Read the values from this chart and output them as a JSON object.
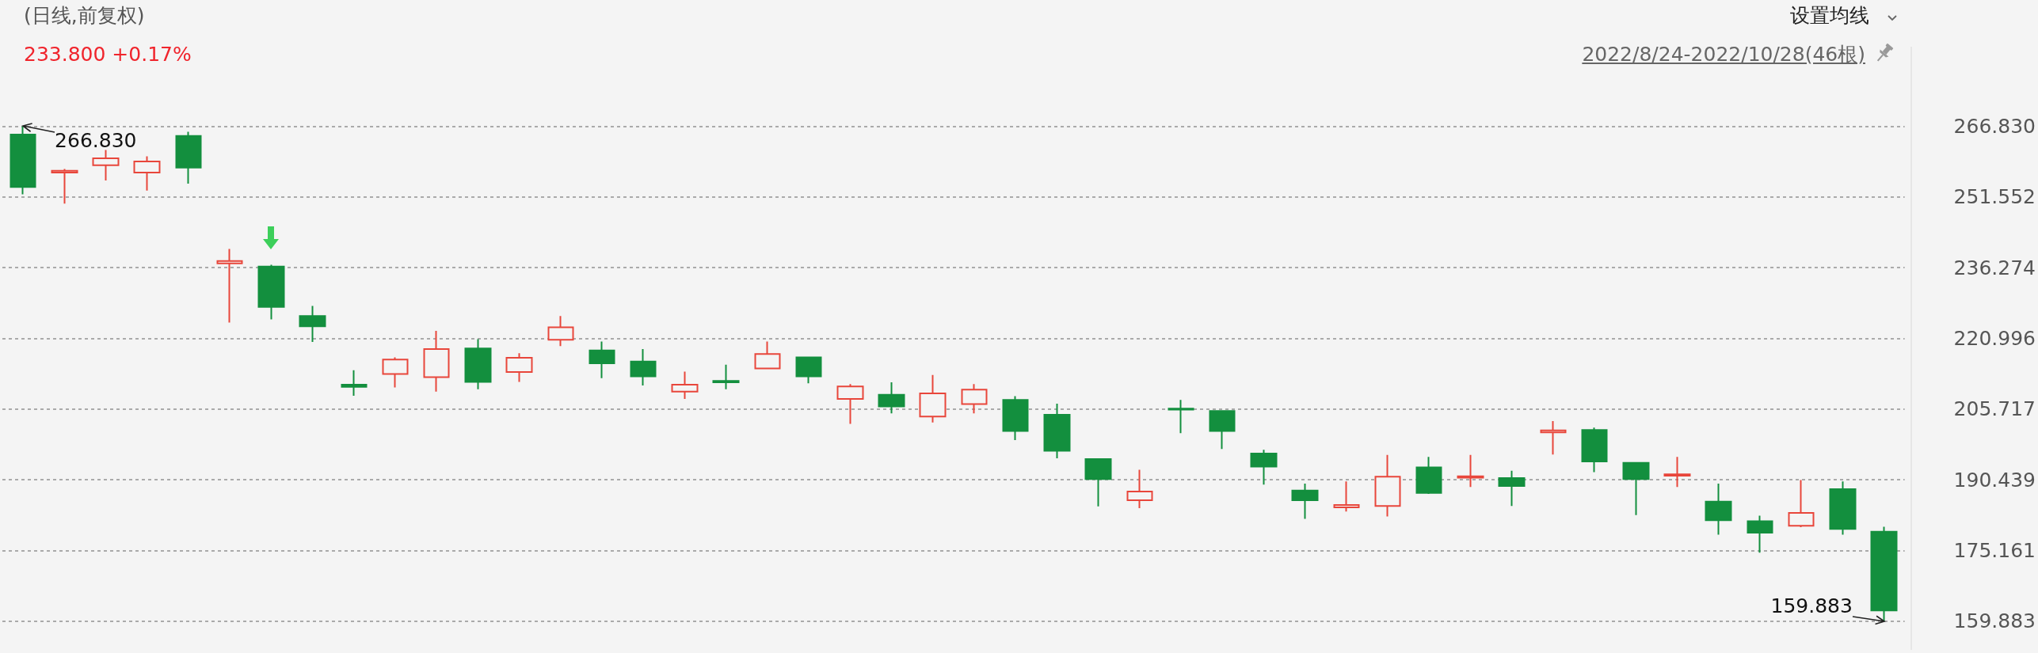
{
  "chart_data": {
    "type": "candlestick",
    "title": "(日线,前复权)",
    "subtitle": "233.800 +0.17%",
    "annotations": [
      "设置均线",
      "2022/8/24-2022/10/28(46根)",
      "266.830",
      "159.883"
    ],
    "categories": [
      null,
      null,
      null,
      null,
      null,
      null,
      null,
      null,
      null,
      null,
      null,
      null,
      null,
      null,
      null,
      null,
      null,
      null,
      null,
      null,
      null,
      null,
      null,
      null,
      null,
      null,
      null,
      null,
      null,
      null,
      null,
      null,
      null,
      null,
      null,
      null,
      null,
      null,
      null,
      null,
      null,
      null,
      null,
      null,
      null,
      null
    ],
    "ohlc": [
      [
        265.0,
        266.83,
        252.1,
        253.7
      ],
      [
        256.8,
        257.6,
        250.1,
        257.2
      ],
      [
        258.4,
        261.7,
        255.1,
        259.9
      ],
      [
        256.8,
        260.3,
        252.9,
        259.2
      ],
      [
        264.7,
        265.6,
        254.4,
        257.9
      ],
      [
        237.2,
        240.3,
        224.4,
        237.7
      ],
      [
        236.5,
        236.9,
        225.1,
        227.8
      ],
      [
        225.8,
        228.0,
        220.2,
        223.6
      ],
      [
        211.0,
        214.1,
        208.6,
        210.5
      ],
      [
        213.3,
        216.9,
        210.4,
        216.4
      ],
      [
        212.6,
        222.6,
        209.5,
        218.7
      ],
      [
        218.8,
        220.8,
        210.0,
        211.6
      ],
      [
        213.7,
        217.8,
        211.6,
        216.8
      ],
      [
        220.7,
        225.8,
        219.3,
        223.4
      ],
      [
        218.4,
        220.3,
        212.4,
        215.6
      ],
      [
        216.0,
        218.7,
        210.8,
        212.8
      ],
      [
        209.5,
        213.8,
        207.9,
        211.0
      ],
      [
        211.8,
        215.3,
        210.0,
        211.5
      ],
      [
        214.5,
        220.3,
        214.3,
        217.6
      ],
      [
        216.9,
        216.9,
        211.3,
        212.8
      ],
      [
        207.9,
        211.1,
        202.5,
        210.6
      ],
      [
        208.8,
        211.5,
        204.8,
        206.3
      ],
      [
        204.1,
        213.1,
        202.8,
        209.1
      ],
      [
        206.8,
        211.1,
        204.8,
        209.9
      ],
      [
        207.7,
        208.5,
        199.0,
        201.0
      ],
      [
        204.5,
        206.9,
        195.1,
        196.7
      ],
      [
        194.9,
        194.9,
        184.7,
        190.6
      ],
      [
        186.0,
        192.6,
        184.3,
        187.9
      ],
      [
        205.8,
        207.7,
        200.5,
        205.6
      ],
      [
        205.3,
        205.3,
        197.1,
        201.0
      ],
      [
        196.1,
        196.9,
        189.4,
        193.3
      ],
      [
        188.1,
        189.6,
        182.0,
        186.0
      ],
      [
        184.5,
        190.1,
        183.6,
        185.0
      ],
      [
        184.8,
        195.8,
        182.5,
        191.1
      ],
      [
        193.1,
        195.4,
        187.4,
        187.6
      ],
      [
        190.9,
        195.8,
        188.9,
        191.2
      ],
      [
        190.8,
        192.4,
        184.8,
        189.1
      ],
      [
        200.7,
        203.1,
        195.9,
        201.1
      ],
      [
        201.2,
        201.7,
        192.1,
        194.4
      ],
      [
        194.1,
        194.1,
        182.8,
        190.6
      ],
      [
        191.3,
        195.4,
        188.9,
        191.6
      ],
      [
        185.7,
        189.6,
        178.6,
        181.7
      ],
      [
        181.5,
        182.7,
        174.7,
        179.0
      ],
      [
        180.5,
        190.4,
        180.2,
        183.3
      ],
      [
        188.4,
        190.1,
        178.6,
        179.8
      ],
      [
        179.2,
        180.3,
        159.883,
        162.2
      ]
    ],
    "colors": [
      "#138f3e",
      "#e8463b",
      "#e8463b",
      "#e8463b",
      "#138f3e",
      "#e8463b",
      "#138f3e",
      "#138f3e",
      "#138f3e",
      "#e8463b",
      "#e8463b",
      "#138f3e",
      "#e8463b",
      "#e8463b",
      "#138f3e",
      "#138f3e",
      "#e8463b",
      "#138f3e",
      "#e8463b",
      "#138f3e",
      "#e8463b",
      "#138f3e",
      "#e8463b",
      "#e8463b",
      "#138f3e",
      "#138f3e",
      "#138f3e",
      "#e8463b",
      "#138f3e",
      "#138f3e",
      "#138f3e",
      "#138f3e",
      "#e8463b",
      "#e8463b",
      "#138f3e",
      "#e8463b",
      "#138f3e",
      "#e8463b",
      "#138f3e",
      "#138f3e",
      "#e8463b",
      "#138f3e",
      "#138f3e",
      "#e8463b",
      "#138f3e",
      "#138f3e"
    ],
    "ylim": [
      153.7,
      284.0
    ],
    "yticks": [
      {
        "value": 266.83,
        "label": "266.830"
      },
      251.552,
      236.274,
      220.996,
      205.717,
      190.439,
      175.161,
      159.883
    ],
    "grid": "y",
    "tick_labels": "y"
  }
}
